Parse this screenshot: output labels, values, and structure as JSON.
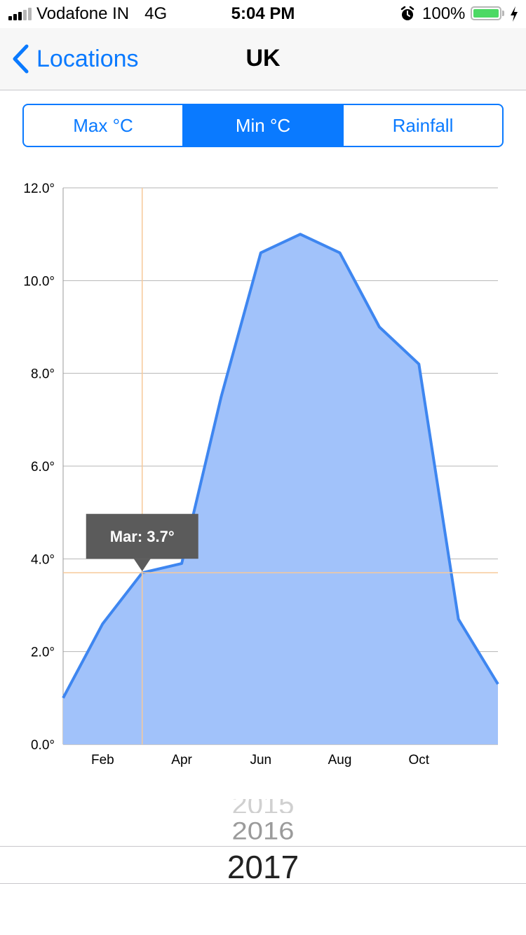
{
  "status_bar": {
    "carrier": "Vodafone IN",
    "network": "4G",
    "time": "5:04 PM",
    "battery_percent": "100%",
    "battery_color": "#4cd964",
    "icons": [
      "signal-icon",
      "alarm-icon",
      "battery-icon",
      "charging-bolt-icon"
    ]
  },
  "nav": {
    "back_label": "Locations",
    "title": "UK",
    "accent": "#0a7aff"
  },
  "segments": [
    {
      "label": "Max °C",
      "selected": false
    },
    {
      "label": "Min °C",
      "selected": true
    },
    {
      "label": "Rainfall",
      "selected": false
    }
  ],
  "chart_data": {
    "type": "area",
    "x": [
      "Jan",
      "Feb",
      "Mar",
      "Apr",
      "May",
      "Jun",
      "Jul",
      "Aug",
      "Sep",
      "Oct",
      "Nov",
      "Dec"
    ],
    "values": [
      1.0,
      2.6,
      3.7,
      3.9,
      7.5,
      10.6,
      11.0,
      10.6,
      9.0,
      8.2,
      2.7,
      1.3
    ],
    "x_tick_labels": [
      "Feb",
      "Apr",
      "Jun",
      "Aug",
      "Oct"
    ],
    "y_tick_labels": [
      "0.0°",
      "2.0°",
      "4.0°",
      "6.0°",
      "8.0°",
      "10.0°",
      "12.0°"
    ],
    "y_ticks": [
      0,
      2,
      4,
      6,
      8,
      10,
      12
    ],
    "ylim": [
      0,
      12
    ],
    "grid": true,
    "line_color": "#3e86f0",
    "fill_color": "#a1c2fa",
    "highlight": {
      "index": 2,
      "label": "Mar: 3.7°",
      "crosshair_color": "#f7c99a"
    }
  },
  "year_picker": {
    "previous": "2016",
    "selected": "2017"
  }
}
